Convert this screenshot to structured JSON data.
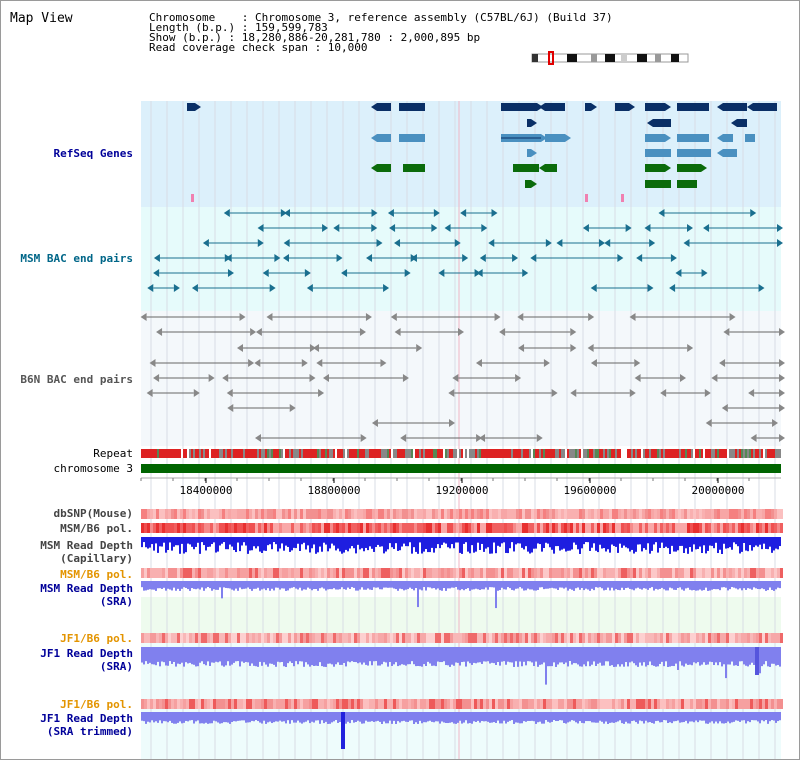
{
  "title": "Map View",
  "header": {
    "chromosome_label": "Chromosome    : Chromosome 3, reference assembly (C57BL/6J) (Build 37)",
    "length_label": "Length (b.p.) : 159,599,783",
    "show_label": "Show (b.p.) : 18,280,886-20,281,780 : 2,000,895 bp",
    "coverage_label": "Read coverage check span : 10,000"
  },
  "tracks": {
    "refseq": "RefSeq Genes",
    "msm_bac": "MSM BAC end pairs",
    "b6n_bac": "B6N BAC end pairs",
    "repeat": "Repeat",
    "chromosome": "chromosome 3",
    "dbsnp": "dbSNP(Mouse)",
    "msm_b6_pol_1": "MSM/B6 pol.",
    "msm_read_depth_cap_1": "MSM Read Depth",
    "msm_read_depth_cap_2": "(Capillary)",
    "msm_b6_pol_2": "MSM/B6 pol.",
    "msm_read_depth_sra_1": "MSM Read Depth",
    "msm_read_depth_sra_2": "(SRA)",
    "jf1_b6_pol_1": "JF1/B6 pol.",
    "jf1_read_depth_sra_1": "JF1 Read Depth",
    "jf1_read_depth_sra_2": "(SRA)",
    "jf1_b6_pol_2": "JF1/B6 pol.",
    "jf1_read_depth_trim_1": "JF1 Read Depth",
    "jf1_read_depth_trim_2": "(SRA trimmed)"
  },
  "axis": {
    "ticks": [
      "18400000",
      "18800000",
      "19200000",
      "19600000",
      "20000000"
    ]
  },
  "colors": {
    "refseq_band": "#dcf0fb",
    "bac_band": "#e6fbfb",
    "refseq_dark": "#0a2f66",
    "refseq_mid": "#4a90c0",
    "refseq_green": "#0b6b0b",
    "msm_line": "#1a6f8f",
    "b6n_line": "#666666",
    "chromosome_bar": "#006400",
    "label_blue": "#000099",
    "label_teal": "#006688",
    "label_gray": "#444444",
    "label_orange": "#e39400",
    "depth_dark_blue": "#1e1ee0",
    "depth_light_blue": "#8080ee"
  }
}
